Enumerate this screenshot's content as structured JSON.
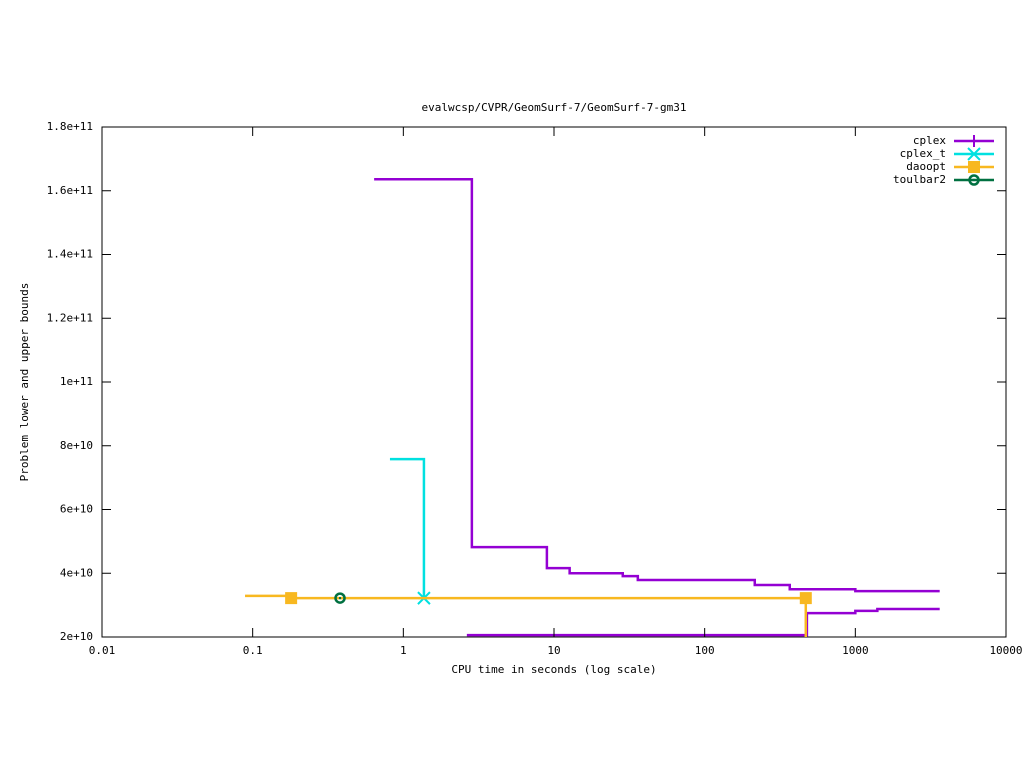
{
  "chart_data": {
    "type": "step",
    "title": "evalwcsp/CVPR/GeomSurf-7/GeomSurf-7-gm31",
    "x_label": "CPU time in seconds (log scale)",
    "y_label": "Problem lower and upper bounds",
    "x_scale": "log",
    "xlim": [
      0.01,
      10000
    ],
    "xticks": [
      0.01,
      0.1,
      1,
      10,
      100,
      1000,
      10000
    ],
    "ylim": [
      20000000000,
      180000000000
    ],
    "yticks": [
      {
        "value": 20000000000,
        "label": "2e+10"
      },
      {
        "value": 40000000000,
        "label": "4e+10"
      },
      {
        "value": 60000000000,
        "label": "6e+10"
      },
      {
        "value": 80000000000,
        "label": "8e+10"
      },
      {
        "value": 100000000000,
        "label": "1e+11"
      },
      {
        "value": 120000000000,
        "label": "1.2e+11"
      },
      {
        "value": 140000000000,
        "label": "1.4e+11"
      },
      {
        "value": 160000000000,
        "label": "1.6e+11"
      },
      {
        "value": 180000000000,
        "label": "1.8e+11"
      }
    ],
    "legend": "top-right",
    "series": [
      {
        "name": "cplex",
        "color": "#9400d3",
        "marker": "plus",
        "x": [
          0.64,
          2.85,
          8.97,
          12.7,
          28.6,
          36,
          215,
          367,
          1000,
          3630,
          null,
          2.64,
          477,
          1000,
          1400,
          3630
        ],
        "values": [
          163600000000,
          48200000000,
          41600000000,
          40000000000,
          39100000000,
          37900000000,
          36300000000,
          35000000000,
          34400000000,
          34400000000,
          null,
          20600000000,
          27500000000,
          28200000000,
          28800000000,
          28800000000
        ],
        "marker_x": [],
        "marker_values": []
      },
      {
        "name": "cplex_t",
        "color": "#00e0e0",
        "marker": "star",
        "x": [
          0.815,
          1.37
        ],
        "values": [
          75800000000,
          32200000000
        ],
        "marker_x": [
          1.37
        ],
        "marker_values": [
          32200000000
        ]
      },
      {
        "name": "daoopt",
        "color": "#f8b820",
        "marker": "square",
        "x": [
          0.089,
          0.18,
          469,
          469
        ],
        "values": [
          32900000000,
          32200000000,
          32200000000,
          20000000000
        ],
        "marker_x": [
          0.18,
          469
        ],
        "marker_values": [
          32200000000,
          32200000000
        ]
      },
      {
        "name": "toulbar2",
        "color": "#007040",
        "marker": "circle",
        "x": [],
        "values": [],
        "marker_x": [
          0.38
        ],
        "marker_values": [
          32200000000
        ]
      }
    ]
  }
}
